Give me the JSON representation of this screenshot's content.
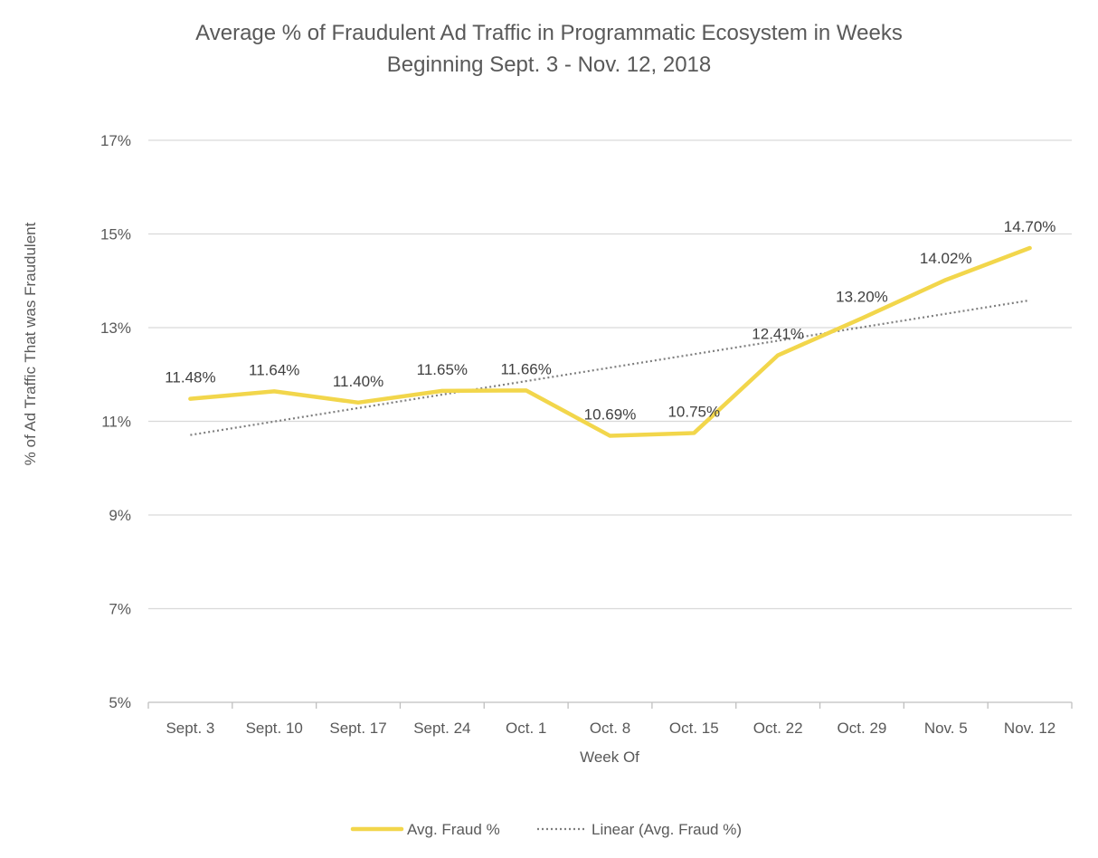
{
  "chart_data": {
    "type": "line",
    "title_line1": "Average % of Fraudulent Ad Traffic in Programmatic Ecosystem in Weeks",
    "title_line2": "Beginning Sept. 3 - Nov. 12, 2018",
    "xlabel": "Week Of",
    "ylabel": "% of Ad Traffic That was Fraudulent",
    "categories": [
      "Sept. 3",
      "Sept. 10",
      "Sept. 17",
      "Sept. 24",
      "Oct. 1",
      "Oct. 8",
      "Oct. 15",
      "Oct. 22",
      "Oct. 29",
      "Nov. 5",
      "Nov. 12"
    ],
    "series": [
      {
        "name": "Avg. Fraud %",
        "values": [
          11.48,
          11.64,
          11.4,
          11.65,
          11.66,
          10.69,
          10.75,
          12.41,
          13.2,
          14.02,
          14.7
        ],
        "labels": [
          "11.48%",
          "11.64%",
          "11.40%",
          "11.65%",
          "11.66%",
          "10.69%",
          "10.75%",
          "12.41%",
          "13.20%",
          "14.02%",
          "14.70%"
        ],
        "color": "#f2d64b"
      }
    ],
    "trendline": {
      "name": "Linear (Avg. Fraud %)",
      "type": "linear",
      "color": "#7f7f7f",
      "style": "dotted"
    },
    "ylim": [
      5,
      17
    ],
    "yticks": [
      5,
      7,
      9,
      11,
      13,
      15,
      17
    ],
    "ytick_labels": [
      "5%",
      "7%",
      "9%",
      "11%",
      "13%",
      "15%",
      "17%"
    ],
    "grid": true,
    "gridline_color": "#d9d9d9",
    "legend_position": "bottom"
  }
}
